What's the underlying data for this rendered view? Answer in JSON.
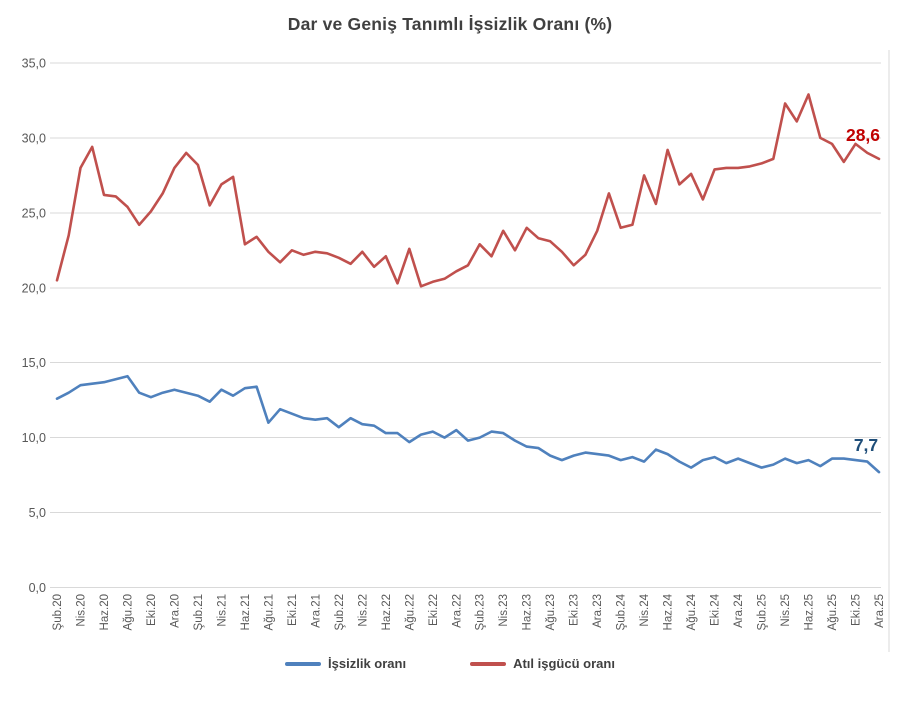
{
  "chart_data": {
    "type": "line",
    "title": "Dar ve Geniş Tanımlı İşsizlik Oranı (%)",
    "n_points": 71,
    "points_per_tick": 2,
    "x_tick_labels": [
      "Şub.20",
      "Nis.20",
      "Haz.20",
      "Ağu.20",
      "Eki.20",
      "Ara.20",
      "Şub.21",
      "Nis.21",
      "Haz.21",
      "Ağu.21",
      "Eki.21",
      "Ara.21",
      "Şub.22",
      "Nis.22",
      "Haz.22",
      "Ağu.22",
      "Eki.22",
      "Ara.22",
      "Şub.23",
      "Nis.23",
      "Haz.23",
      "Ağu.23",
      "Eki.23",
      "Ara.23",
      "Şub.24",
      "Nis.24",
      "Haz.24",
      "Ağu.24",
      "Eki.24",
      "Ara.24",
      "Şub.25",
      "Nis.25",
      "Haz.25",
      "Ağu.25",
      "Eki.25",
      "Ara.25"
    ],
    "y_axis": {
      "min": 0,
      "max": 35,
      "step": 5,
      "tick_labels": [
        "0,0",
        "5,0",
        "10,0",
        "15,0",
        "20,0",
        "25,0",
        "30,0",
        "35,0"
      ]
    },
    "grid": true,
    "legend_position": "bottom",
    "series": [
      {
        "name": "İşsizlik oranı",
        "color": "#4F81BD",
        "end_label": "7,7",
        "end_label_color": "#1F4E79",
        "values": [
          12.6,
          13.0,
          13.5,
          13.6,
          13.7,
          13.9,
          14.1,
          13.0,
          12.7,
          13.0,
          13.2,
          13.0,
          12.8,
          12.4,
          13.2,
          12.8,
          13.3,
          13.4,
          11.0,
          11.9,
          11.6,
          11.3,
          11.2,
          11.3,
          10.7,
          11.3,
          10.9,
          10.8,
          10.3,
          10.3,
          9.7,
          10.2,
          10.4,
          10.0,
          10.5,
          9.8,
          10.0,
          10.4,
          10.3,
          9.8,
          9.4,
          9.3,
          8.8,
          8.5,
          8.8,
          9.0,
          8.9,
          8.8,
          8.5,
          8.7,
          8.4,
          9.2,
          8.9,
          8.4,
          8.0,
          8.5,
          8.7,
          8.3,
          8.6,
          8.3,
          8.0,
          8.2,
          8.6,
          8.3,
          8.5,
          8.1,
          8.6,
          8.6,
          8.5,
          8.4,
          7.7
        ]
      },
      {
        "name": "Atıl işgücü oranı",
        "color": "#C0504D",
        "end_label": "28,6",
        "end_label_color": "#C00000",
        "values": [
          20.5,
          23.5,
          28.0,
          29.4,
          26.2,
          26.1,
          25.4,
          24.2,
          25.1,
          26.3,
          28.0,
          29.0,
          28.2,
          25.5,
          26.9,
          27.4,
          22.9,
          23.4,
          22.4,
          21.7,
          22.5,
          22.2,
          22.4,
          22.3,
          22.0,
          21.6,
          22.4,
          21.4,
          22.1,
          20.3,
          22.6,
          20.1,
          20.4,
          20.6,
          21.1,
          21.5,
          22.9,
          22.1,
          23.8,
          22.5,
          24.0,
          23.3,
          23.1,
          22.4,
          21.5,
          22.2,
          23.8,
          26.3,
          24.0,
          24.2,
          27.5,
          25.6,
          29.2,
          26.9,
          27.6,
          25.9,
          27.9,
          28.0,
          28.0,
          28.1,
          28.3,
          28.6,
          32.3,
          31.1,
          32.9,
          30.0,
          29.6,
          28.4,
          29.6,
          29.0,
          28.6
        ]
      }
    ]
  },
  "colors": {
    "background": "#FFFFFF",
    "grid": "#D9D9D9",
    "axis_text": "#595959",
    "title_text": "#404040",
    "right_border": "#D9D9D9"
  }
}
